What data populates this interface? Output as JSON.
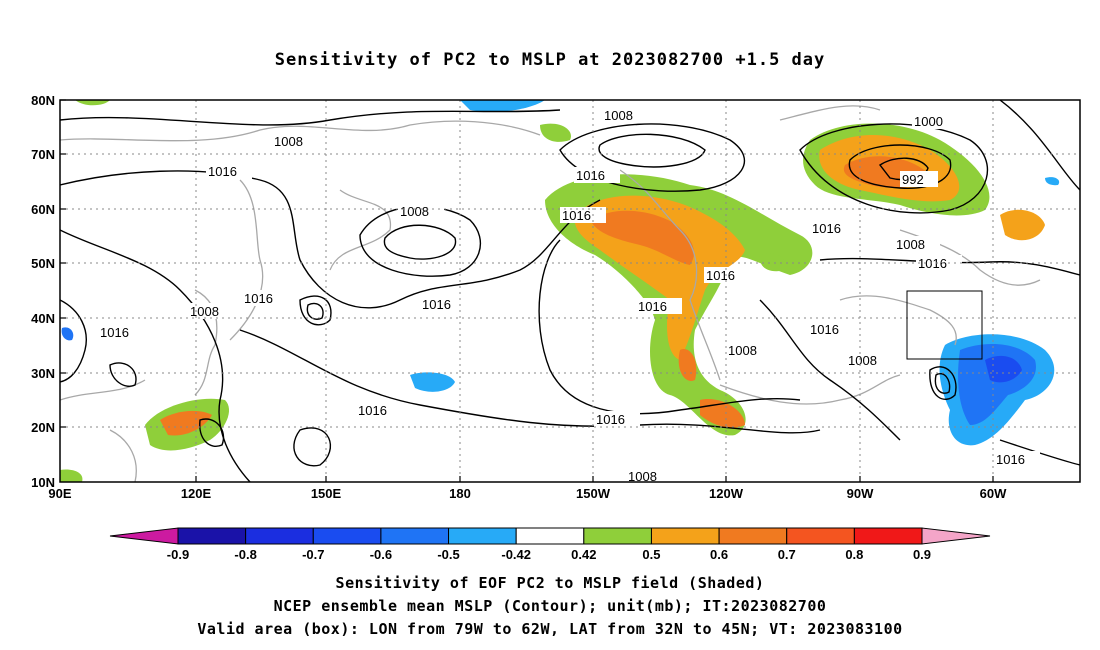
{
  "title": "Sensitivity of PC2 to MSLP at 2023082700 +1.5 day",
  "lat_labels": [
    "80N",
    "70N",
    "60N",
    "50N",
    "40N",
    "30N",
    "20N",
    "10N"
  ],
  "lon_labels": [
    "90E",
    "120E",
    "150E",
    "180",
    "150W",
    "120W",
    "90W",
    "60W"
  ],
  "contour_labels": [
    "1008",
    "1016",
    "1008",
    "1016",
    "1016",
    "1016",
    "1016",
    "1008",
    "1016",
    "1016",
    "1016",
    "1016",
    "1008",
    "1016",
    "1000",
    "992",
    "1016",
    "1008",
    "1016",
    "1016",
    "1008",
    "1008",
    "1016",
    "1008"
  ],
  "colorbar": {
    "labels": [
      "-0.9",
      "-0.8",
      "-0.7",
      "-0.6",
      "-0.5",
      "-0.42",
      "0.42",
      "0.5",
      "0.6",
      "0.7",
      "0.8",
      "0.9"
    ],
    "colors": [
      "#1a12a8",
      "#1b2ee0",
      "#1a4cf0",
      "#1f74f5",
      "#27aaf7",
      "#ffffff",
      "#8fcf3a",
      "#f4a21a",
      "#f07a20",
      "#f45520",
      "#f01818"
    ],
    "low_color": "#cc1aa0",
    "high_color": "#f4a5c8"
  },
  "captions": [
    "Sensitivity of EOF PC2 to MSLP field (Shaded)",
    "NCEP ensemble mean MSLP (Contour); unit(mb); IT:2023082700",
    "Valid area (box): LON from 79W to 62W, LAT from 32N to 45N; VT: 2023083100"
  ]
}
